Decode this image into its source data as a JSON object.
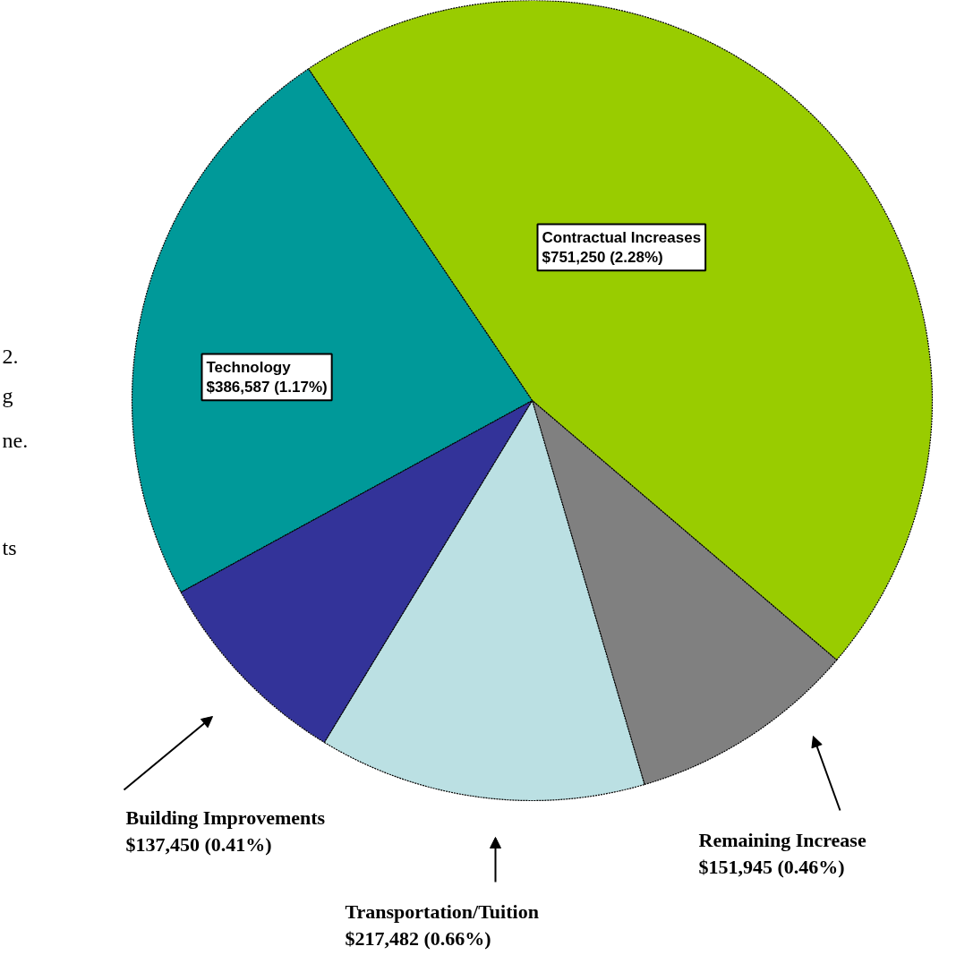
{
  "chart_data": {
    "type": "pie",
    "categories": [
      "Contractual Increases",
      "Remaining Increase",
      "Transportation/Tuition",
      "Building Improvements",
      "Technology"
    ],
    "values": [
      751250,
      151945,
      217482,
      137450,
      386587
    ],
    "colors": [
      "#99cc00",
      "#808080",
      "#bbe0e3",
      "#333399",
      "#009999"
    ],
    "value_labels": [
      "$751,250 (2.28%)",
      "$151,945 (0.46%)",
      "$217,482 (0.66%)",
      "$137,450  (0.41%)",
      "$386,587 (1.17%)"
    ],
    "annotations": [
      "2.",
      "g",
      "ne.",
      "ts"
    ]
  }
}
